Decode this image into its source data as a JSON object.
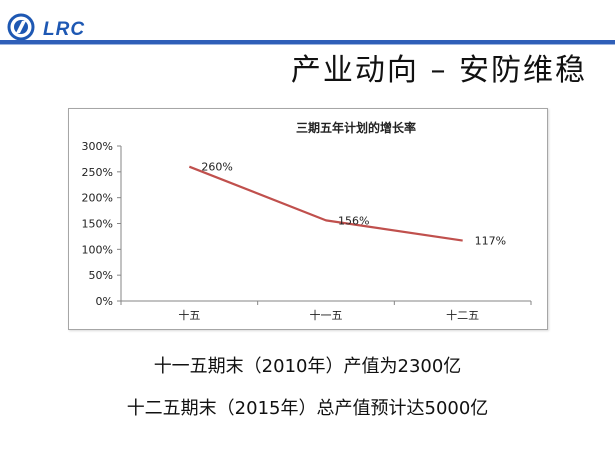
{
  "header": {
    "logo_text": "LRC"
  },
  "slide": {
    "title": "产业动向 – 安防维稳"
  },
  "chart_data": {
    "type": "line",
    "title": "三期五年计划的增长率",
    "categories": [
      "十五",
      "十一五",
      "十二五"
    ],
    "values": [
      260,
      156,
      117
    ],
    "data_labels": [
      "260%",
      "156%",
      "117%"
    ],
    "yticks": [
      "0%",
      "50%",
      "100%",
      "150%",
      "200%",
      "250%",
      "300%"
    ],
    "ylim": [
      0,
      300
    ],
    "grid": false,
    "line_color": "#c0504d"
  },
  "captions": [
    "十一五期末（2010年）产值为2300亿",
    "十二五期末（2015年）总产值预计达5000亿"
  ]
}
